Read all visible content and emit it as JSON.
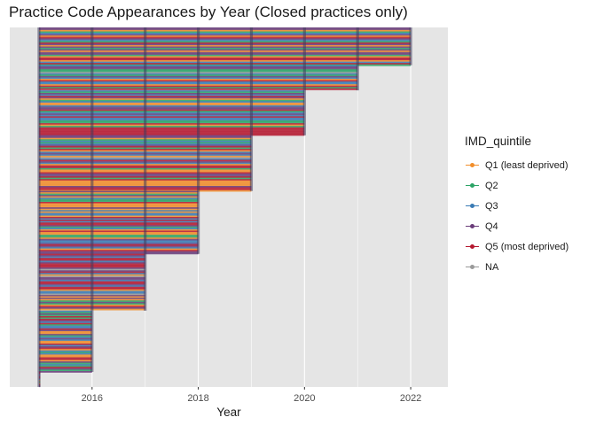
{
  "chart_data": {
    "type": "line",
    "title": "Practice Code Appearances by Year (Closed practices only)",
    "xlabel": "Year",
    "ylabel": "",
    "x_ticks": [
      2016,
      2018,
      2020,
      2022
    ],
    "xlim": [
      2014.45,
      2022.7
    ],
    "grid": true,
    "legend": {
      "title": "IMD_quintile",
      "position": "right",
      "entries": [
        {
          "label": "Q1 (least deprived)",
          "color": "#F28E2B"
        },
        {
          "label": "Q2",
          "color": "#2CA466"
        },
        {
          "label": "Q3",
          "color": "#3A7BB5"
        },
        {
          "label": "Q4",
          "color": "#6A3D7A"
        },
        {
          "label": "Q5 (most deprived)",
          "color": "#B5182F"
        },
        {
          "label": "NA",
          "color": "#999999"
        }
      ]
    },
    "series_note": "",
    "closure_groups": [
      {
        "start_year": 2015,
        "last_year": 2022,
        "share": 0.105
      },
      {
        "start_year": 2015,
        "last_year": 2021,
        "share": 0.07
      },
      {
        "start_year": 2015,
        "last_year": 2020,
        "share": 0.125
      },
      {
        "start_year": 2015,
        "last_year": 2019,
        "share": 0.155
      },
      {
        "start_year": 2015,
        "last_year": 2018,
        "share": 0.175
      },
      {
        "start_year": 2015,
        "last_year": 2017,
        "share": 0.158
      },
      {
        "start_year": 2015,
        "last_year": 2016,
        "share": 0.17
      },
      {
        "start_year": 2015,
        "last_year": 2015,
        "share": 0.042
      }
    ]
  }
}
